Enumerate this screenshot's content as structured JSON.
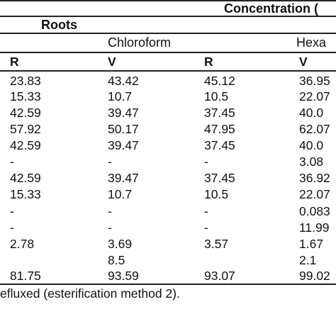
{
  "header": {
    "concentration_label": "Concentration (",
    "roots_label": "Roots",
    "chloroform_label": "Chloroform",
    "hexane_label": "Hexa",
    "sub_headers": [
      "R",
      "V",
      "R",
      "V"
    ]
  },
  "rows": [
    [
      "23.83",
      "43.42",
      "45.12",
      "36.95"
    ],
    [
      "15.33",
      "10.7",
      "10.5",
      "22.07"
    ],
    [
      "42.59",
      "39.47",
      "37.45",
      "40.0"
    ],
    [
      "57.92",
      "50.17",
      "47.95",
      "62.07"
    ],
    [
      "42.59",
      "39.47",
      "37.45",
      "40.0"
    ],
    [
      "-",
      "-",
      "-",
      "3.08"
    ],
    [
      "42.59",
      "39.47",
      "37.45",
      "36.92"
    ],
    [
      "15.33",
      "10.7",
      "10.5",
      "22.07"
    ],
    [
      "-",
      "-",
      "-",
      "0.083"
    ],
    [
      "-",
      "-",
      "-",
      "11.99"
    ],
    [
      "2.78",
      "3.69",
      "3.57",
      "1.67"
    ],
    [
      "",
      "8.5",
      "",
      "2.1"
    ],
    [
      "81.75",
      "93.59",
      "93.07",
      "99.02"
    ]
  ],
  "footnote": "efluxed (esterification method 2)."
}
